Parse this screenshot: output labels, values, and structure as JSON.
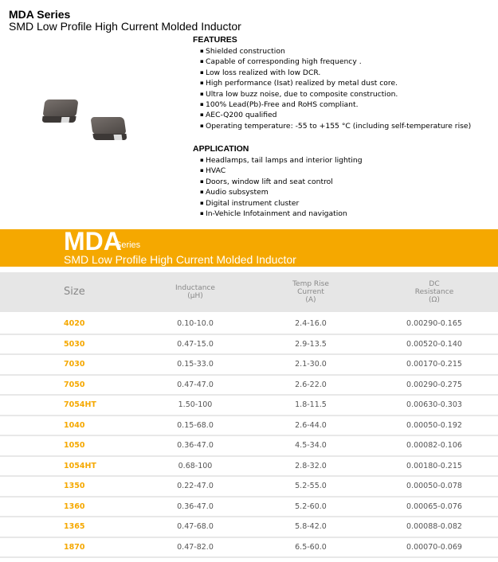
{
  "header": {
    "title": "MDA Series",
    "subtitle": "SMD Low Profile High Current Molded Inductor"
  },
  "features": {
    "heading": "FEATURES",
    "items": [
      "Shielded construction",
      "Capable of corresponding high frequency .",
      " Low loss realized with low DCR.",
      "High performance (Isat) realized by metal dust core.",
      "Ultra low buzz noise, due to composite construction.",
      "100% Lead(Pb)-Free and RoHS compliant.",
      "AEC-Q200 qualified",
      "Operating temperature: -55 to +155 °C (including self-temperature rise)"
    ]
  },
  "application": {
    "heading": "APPLICATION",
    "items": [
      "Headlamps, tail lamps and interior lighting",
      "HVAC",
      "Doors, window lift and seat control",
      "Audio subsystem",
      "Digital instrument cluster",
      "In-Vehicle Infotainment and navigation"
    ]
  },
  "band": {
    "name": "MDA",
    "series": "Series",
    "subtitle": "SMD Low Profile High Current Molded Inductor",
    "color": "#f5a800"
  },
  "table": {
    "headers": [
      "Size",
      "Inductance\n(μH)",
      "Temp Rise\nCurrent\n(A)",
      "DC\nResistance\n(Ω)"
    ],
    "rows": [
      [
        "4020",
        "0.10-10.0",
        "2.4-16.0",
        "0.00290-0.165"
      ],
      [
        "5030",
        "0.47-15.0",
        "2.9-13.5",
        "0.00520-0.140"
      ],
      [
        "7030",
        "0.15-33.0",
        "2.1-30.0",
        "0.00170-0.215"
      ],
      [
        "7050",
        "0.47-47.0",
        "2.6-22.0",
        "0.00290-0.275"
      ],
      [
        "7054HT",
        "1.50-100",
        "1.8-11.5",
        "0.00630-0.303"
      ],
      [
        "1040",
        "0.15-68.0",
        "2.6-44.0",
        "0.00050-0.192"
      ],
      [
        "1050",
        "0.36-47.0",
        "4.5-34.0",
        "0.00082-0.106"
      ],
      [
        "1054HT",
        "0.68-100",
        "2.8-32.0",
        "0.00180-0.215"
      ],
      [
        "1350",
        "0.22-47.0",
        "5.2-55.0",
        "0.00050-0.078"
      ],
      [
        "1360",
        "0.36-47.0",
        "5.2-60.0",
        "0.00065-0.076"
      ],
      [
        "1365",
        "0.47-68.0",
        "5.8-42.0",
        "0.00088-0.082"
      ],
      [
        "1870",
        "0.47-82.0",
        "6.5-60.0",
        "0.00070-0.069"
      ]
    ]
  }
}
